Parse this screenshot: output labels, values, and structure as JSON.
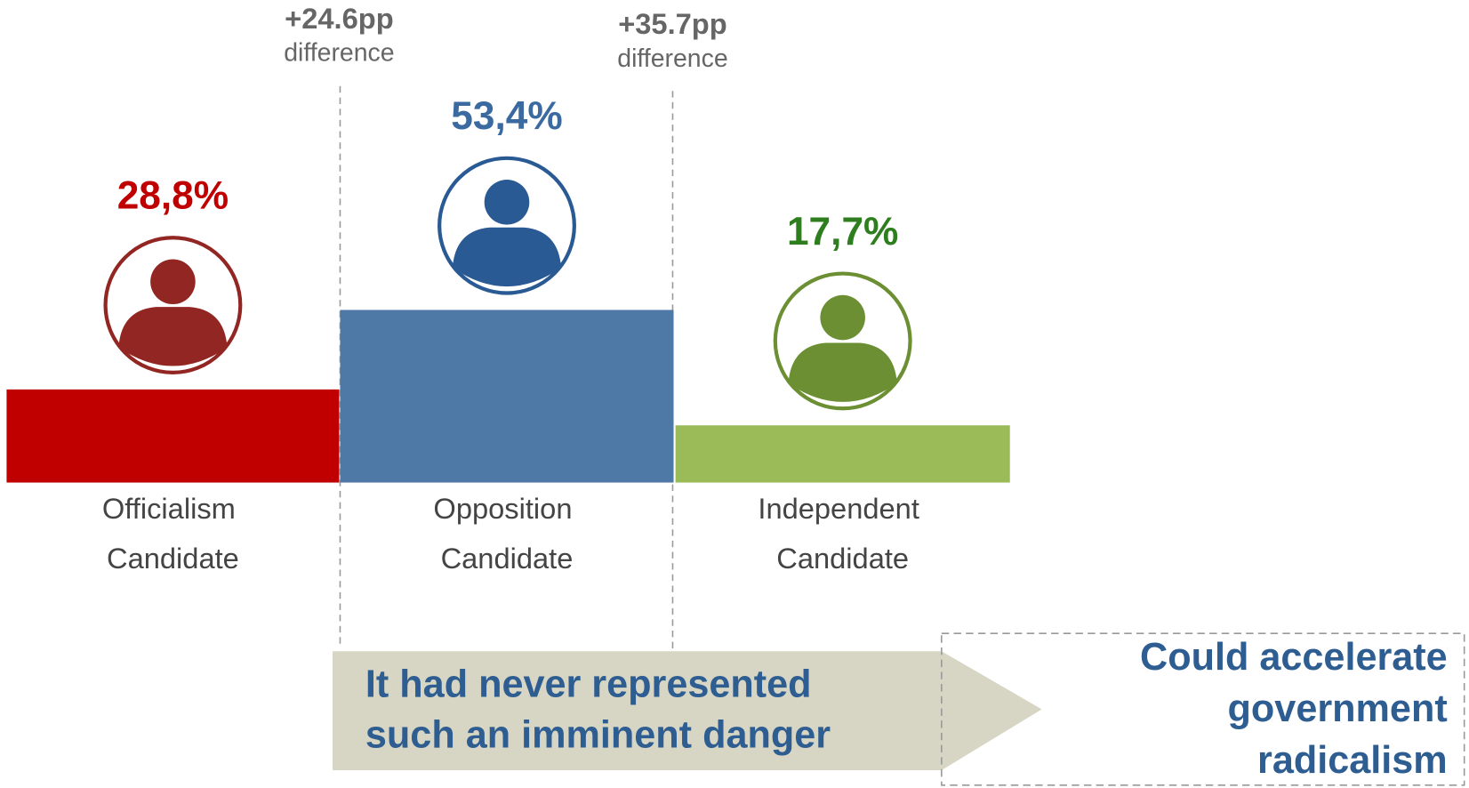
{
  "chart_data": {
    "type": "bar",
    "categories": [
      "Officialism Candidate",
      "Opposition Candidate",
      "Independent Candidate"
    ],
    "values": [
      28.8,
      53.4,
      17.7
    ],
    "value_labels": [
      "28,8%",
      "53,4%",
      "17,7%"
    ],
    "colors": [
      "#c00000",
      "#4e79a7",
      "#9bbb59"
    ],
    "annotations": [
      {
        "value": "+24.6pp",
        "text": "difference"
      },
      {
        "value": "+35.7pp",
        "text": "difference"
      }
    ],
    "arrow_text": [
      "It had never represented",
      "such an imminent danger"
    ],
    "box_text": [
      "Could accelerate",
      "government",
      "radicalism"
    ]
  }
}
